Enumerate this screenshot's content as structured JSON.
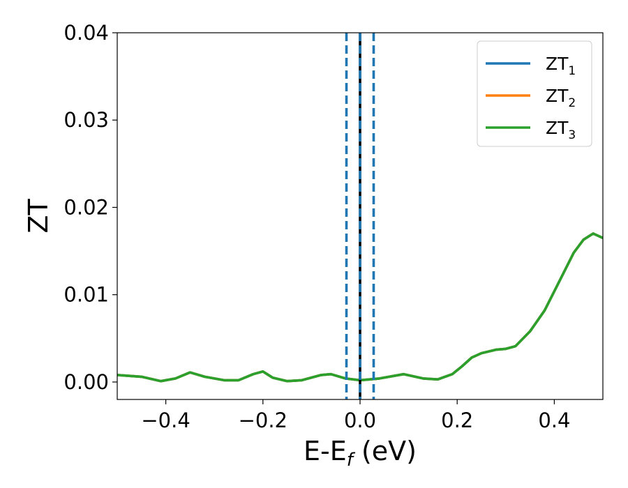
{
  "chart_data": {
    "type": "line",
    "xlabel_main": "E-E",
    "xlabel_sub": "f",
    "xlabel_unit": " (eV)",
    "ylabel": "ZT",
    "xlim": [
      -0.5,
      0.5
    ],
    "ylim": [
      -0.002,
      0.04
    ],
    "xticks": [
      -0.4,
      -0.2,
      0.0,
      0.2,
      0.4
    ],
    "xtick_labels": [
      "−0.4",
      "−0.2",
      "0.0",
      "0.2",
      "0.4"
    ],
    "yticks": [
      0.0,
      0.01,
      0.02,
      0.03,
      0.04
    ],
    "ytick_labels": [
      "0.00",
      "0.01",
      "0.02",
      "0.03",
      "0.04"
    ],
    "legend_position": "top-right",
    "series": [
      {
        "name": "ZT",
        "sub": "1",
        "color": "#1f77b4",
        "x": [
          -0.5,
          -0.45,
          -0.41,
          -0.38,
          -0.35,
          -0.32,
          -0.28,
          -0.25,
          -0.22,
          -0.2,
          -0.18,
          -0.15,
          -0.12,
          -0.08,
          -0.06,
          -0.03,
          0.0,
          0.04,
          0.09,
          0.13,
          0.16,
          0.19,
          0.21,
          0.23,
          0.25,
          0.28,
          0.3,
          0.32,
          0.35,
          0.38,
          0.41,
          0.44,
          0.46,
          0.48,
          0.5
        ],
        "y": [
          0.0008,
          0.0006,
          0.0001,
          0.0004,
          0.0011,
          0.0006,
          0.0002,
          0.0002,
          0.0009,
          0.0012,
          0.0005,
          0.0001,
          0.0002,
          0.0008,
          0.0009,
          0.0004,
          0.0002,
          0.0004,
          0.0009,
          0.0004,
          0.0003,
          0.0009,
          0.0018,
          0.0028,
          0.0033,
          0.0037,
          0.0038,
          0.0041,
          0.0058,
          0.0082,
          0.0115,
          0.0148,
          0.0163,
          0.017,
          0.0165
        ]
      },
      {
        "name": "ZT",
        "sub": "2",
        "color": "#ff7f0e",
        "x": [
          -0.5,
          -0.45,
          -0.41,
          -0.38,
          -0.35,
          -0.32,
          -0.28,
          -0.25,
          -0.22,
          -0.2,
          -0.18,
          -0.15,
          -0.12,
          -0.08,
          -0.06,
          -0.03,
          0.0,
          0.04,
          0.09,
          0.13,
          0.16,
          0.19,
          0.21,
          0.23,
          0.25,
          0.28,
          0.3,
          0.32,
          0.35,
          0.38,
          0.41,
          0.44,
          0.46,
          0.48,
          0.5
        ],
        "y": [
          0.0008,
          0.0006,
          0.0001,
          0.0004,
          0.0011,
          0.0006,
          0.0002,
          0.0002,
          0.0009,
          0.0012,
          0.0005,
          0.0001,
          0.0002,
          0.0008,
          0.0009,
          0.0004,
          0.0002,
          0.0004,
          0.0009,
          0.0004,
          0.0003,
          0.0009,
          0.0018,
          0.0028,
          0.0033,
          0.0037,
          0.0038,
          0.0041,
          0.0058,
          0.0082,
          0.0115,
          0.0148,
          0.0163,
          0.017,
          0.0165
        ]
      },
      {
        "name": "ZT",
        "sub": "3",
        "color": "#2ca02c",
        "x": [
          -0.5,
          -0.45,
          -0.41,
          -0.38,
          -0.35,
          -0.32,
          -0.28,
          -0.25,
          -0.22,
          -0.2,
          -0.18,
          -0.15,
          -0.12,
          -0.08,
          -0.06,
          -0.03,
          0.0,
          0.04,
          0.09,
          0.13,
          0.16,
          0.19,
          0.21,
          0.23,
          0.25,
          0.28,
          0.3,
          0.32,
          0.35,
          0.38,
          0.41,
          0.44,
          0.46,
          0.48,
          0.5
        ],
        "y": [
          0.0008,
          0.0006,
          0.0001,
          0.0004,
          0.0011,
          0.0006,
          0.0002,
          0.0002,
          0.0009,
          0.0012,
          0.0005,
          0.0001,
          0.0002,
          0.0008,
          0.0009,
          0.0004,
          0.0002,
          0.0004,
          0.0009,
          0.0004,
          0.0003,
          0.0009,
          0.0018,
          0.0028,
          0.0033,
          0.0037,
          0.0038,
          0.0041,
          0.0058,
          0.0082,
          0.0115,
          0.0148,
          0.0163,
          0.017,
          0.0165
        ]
      }
    ],
    "vertical_lines": [
      {
        "x": -0.028,
        "style": "dashed",
        "color": "#1f77b4"
      },
      {
        "x": 0.028,
        "style": "dashed",
        "color": "#1f77b4"
      },
      {
        "x": 0.0,
        "style": "solid",
        "color": "#000000"
      },
      {
        "x": 0.0,
        "style": "dashed",
        "color": "#1f77b4"
      }
    ]
  }
}
